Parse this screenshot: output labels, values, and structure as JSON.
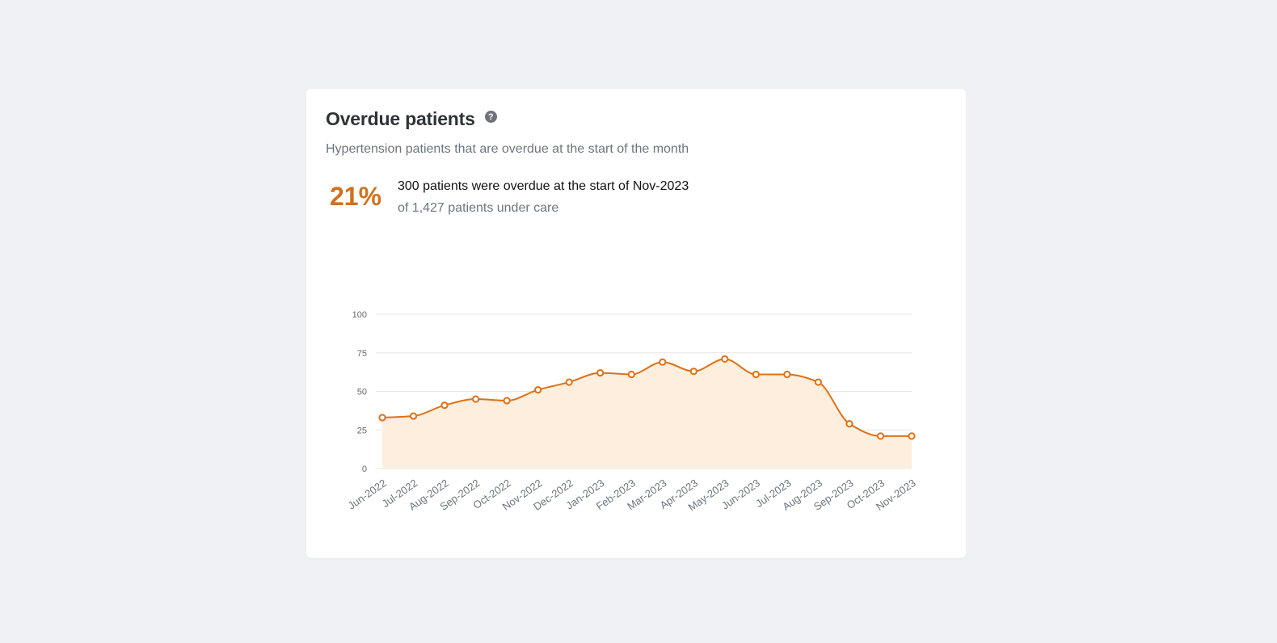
{
  "card": {
    "title": "Overdue patients",
    "help_icon": "?",
    "subtitle": "Hypertension patients that are overdue at the start of the month",
    "kpi_value": "21%",
    "summary": "300 patients were overdue at the start of Nov-2023",
    "care_line": "of 1,427 patients under care"
  },
  "colors": {
    "accent": "#e07014",
    "kpi_text": "#d1711f",
    "area_fill": "#fdeedd",
    "grid": "#e6e6e6"
  },
  "chart_data": {
    "type": "area",
    "title": "",
    "xlabel": "",
    "ylabel": "",
    "ylim": [
      0,
      100
    ],
    "yticks": [
      0,
      25,
      50,
      75,
      100
    ],
    "grid": true,
    "categories": [
      "Jun-2022",
      "Jul-2022",
      "Aug-2022",
      "Sep-2022",
      "Oct-2022",
      "Nov-2022",
      "Dec-2022",
      "Jan-2023",
      "Feb-2023",
      "Mar-2023",
      "Apr-2023",
      "May-2023",
      "Jun-2023",
      "Jul-2023",
      "Aug-2023",
      "Sep-2023",
      "Oct-2023",
      "Nov-2023"
    ],
    "series": [
      {
        "values": [
          33,
          34,
          41,
          45,
          44,
          51,
          56,
          62,
          61,
          69,
          63,
          71,
          61,
          61,
          56,
          29,
          21,
          21
        ]
      }
    ]
  }
}
